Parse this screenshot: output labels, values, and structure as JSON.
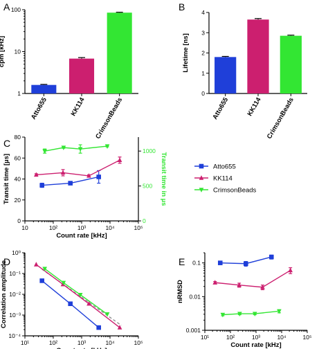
{
  "colors": {
    "Atto655": "#1f3fd9",
    "KK114": "#cc1f6f",
    "CrimsonBeads": "#33e633",
    "fit": "#888888"
  },
  "chart_data": [
    {
      "panel": "A",
      "type": "bar",
      "ylabel": "cpm [kHz]",
      "yscale": "log",
      "ylim": [
        1,
        100
      ],
      "yticks": [
        {
          "v": 1,
          "label": "1"
        },
        {
          "v": 10,
          "label": "10"
        },
        {
          "v": 100,
          "label": "100"
        }
      ],
      "categories": [
        "Atto655",
        "KK114",
        "CrimsonBeads"
      ],
      "values": [
        1.6,
        6.8,
        85
      ],
      "errors": [
        0.05,
        0.4,
        2
      ]
    },
    {
      "panel": "B",
      "type": "bar",
      "ylabel": "Lifetime [ns]",
      "yscale": "linear",
      "ylim": [
        0,
        4
      ],
      "yticks": [
        {
          "v": 0,
          "label": "0"
        },
        {
          "v": 1,
          "label": "1"
        },
        {
          "v": 2,
          "label": "2"
        },
        {
          "v": 3,
          "label": "3"
        },
        {
          "v": 4,
          "label": "4"
        }
      ],
      "categories": [
        "Atto655",
        "KK114",
        "CrimsonBeads"
      ],
      "values": [
        1.8,
        3.65,
        2.85
      ],
      "errors": [
        0.03,
        0.05,
        0.03
      ]
    },
    {
      "panel": "C",
      "type": "line",
      "xlabel": "Count rate [kHz]",
      "ylabel": "Transit time [µs]",
      "y2label": "Transit time in µs",
      "xscale": "log",
      "xlim": [
        10,
        100000
      ],
      "xticks": [
        {
          "v": 10,
          "label": "10"
        },
        {
          "v": 100,
          "label": "10²"
        },
        {
          "v": 1000,
          "label": "10³"
        },
        {
          "v": 10000,
          "label": "10⁴"
        },
        {
          "v": 100000,
          "label": "10⁵"
        }
      ],
      "ylim": [
        0,
        80
      ],
      "yticks": [
        {
          "v": 0,
          "label": "0"
        },
        {
          "v": 20,
          "label": "20"
        },
        {
          "v": 40,
          "label": "40"
        },
        {
          "v": 60,
          "label": "60"
        },
        {
          "v": 80,
          "label": "80"
        }
      ],
      "y2lim": [
        0,
        1200
      ],
      "y2ticks": [
        {
          "v": 0,
          "label": "0"
        },
        {
          "v": 500,
          "label": "500"
        },
        {
          "v": 1000,
          "label": "1000"
        }
      ],
      "series": [
        {
          "name": "Atto655",
          "axis": "left",
          "x": [
            40,
            400,
            4000
          ],
          "y": [
            34,
            36,
            42
          ],
          "err": [
            2,
            1,
            6
          ]
        },
        {
          "name": "KK114",
          "axis": "left",
          "x": [
            25,
            220,
            1800,
            22000
          ],
          "y": [
            44,
            46,
            43,
            58
          ],
          "err": [
            1,
            3,
            1,
            3
          ]
        },
        {
          "name": "CrimsonBeads",
          "axis": "right",
          "x": [
            50,
            230,
            900,
            8000
          ],
          "y": [
            1000,
            1050,
            1030,
            1070
          ],
          "err": [
            30,
            10,
            60,
            10
          ]
        }
      ]
    },
    {
      "panel": "D",
      "type": "line",
      "xlabel": "Count rate [kHz]",
      "ylabel": "Correlation amplitude",
      "xscale": "log",
      "xlim": [
        10,
        100000
      ],
      "yscale": "log",
      "ylim": [
        0.0001,
        1
      ],
      "xticks": [
        {
          "v": 10,
          "label": "10¹"
        },
        {
          "v": 100,
          "label": "10²"
        },
        {
          "v": 1000,
          "label": "10³"
        },
        {
          "v": 10000,
          "label": "10⁴"
        },
        {
          "v": 100000,
          "label": "10⁵"
        }
      ],
      "yticks": [
        {
          "v": 0.0001,
          "label": "10⁻⁴"
        },
        {
          "v": 0.001,
          "label": "10⁻³"
        },
        {
          "v": 0.01,
          "label": "10⁻²"
        },
        {
          "v": 0.1,
          "label": "10⁻¹"
        },
        {
          "v": 1,
          "label": "10⁰"
        }
      ],
      "series": [
        {
          "name": "Atto655",
          "x": [
            40,
            400,
            4000
          ],
          "y": [
            0.045,
            0.0035,
            0.00025
          ]
        },
        {
          "name": "KK114",
          "x": [
            25,
            220,
            1800,
            22000
          ],
          "y": [
            0.27,
            0.03,
            0.0035,
            0.00025
          ]
        },
        {
          "name": "CrimsonBeads",
          "x": [
            50,
            230,
            900,
            8000
          ],
          "y": [
            0.17,
            0.036,
            0.0095,
            0.0011
          ]
        }
      ],
      "fit": {
        "x": [
          40,
          25000
        ],
        "y": [
          0.16,
          0.00032
        ]
      }
    },
    {
      "panel": "E",
      "type": "line",
      "xlabel": "Count rate [kHz]",
      "ylabel": "nRMSD",
      "xscale": "log",
      "xlim": [
        10,
        100000
      ],
      "yscale": "log",
      "ylim": [
        0.001,
        0.2
      ],
      "xticks": [
        {
          "v": 10,
          "label": "10¹"
        },
        {
          "v": 100,
          "label": "10²"
        },
        {
          "v": 1000,
          "label": "10³"
        },
        {
          "v": 10000,
          "label": "10⁴"
        },
        {
          "v": 100000,
          "label": "10⁵"
        }
      ],
      "yticks": [
        {
          "v": 0.001,
          "label": "0.001"
        },
        {
          "v": 0.01,
          "label": "0.01"
        },
        {
          "v": 0.1,
          "label": "0.1"
        }
      ],
      "series": [
        {
          "name": "Atto655",
          "x": [
            40,
            400,
            4000
          ],
          "y": [
            0.1,
            0.095,
            0.15
          ],
          "err": [
            0.01,
            0.015,
            0.02
          ]
        },
        {
          "name": "KK114",
          "x": [
            25,
            220,
            1800,
            22000
          ],
          "y": [
            0.026,
            0.022,
            0.019,
            0.06
          ],
          "err": [
            0.002,
            0.003,
            0.003,
            0.012
          ]
        },
        {
          "name": "CrimsonBeads",
          "x": [
            50,
            230,
            900,
            8000
          ],
          "y": [
            0.0029,
            0.0031,
            0.0031,
            0.0037
          ],
          "err": [
            0.0002,
            0.0002,
            0.0002,
            0.0004
          ]
        }
      ]
    }
  ],
  "legend": {
    "items": [
      "Atto655",
      "KK114",
      "CrimsonBeads"
    ]
  }
}
